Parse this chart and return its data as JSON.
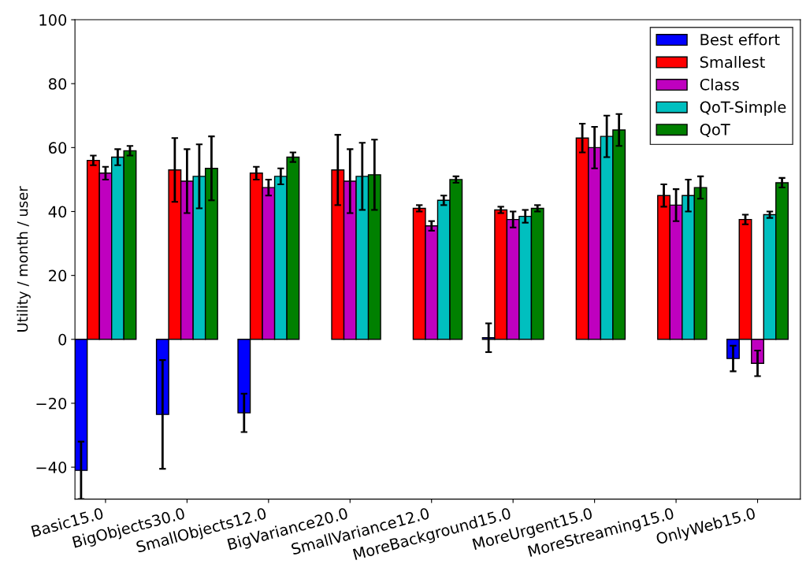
{
  "chart_data": {
    "type": "bar",
    "ylabel": "Utility / month / user",
    "categories": [
      "Basic15.0",
      "BigObjects30.0",
      "SmallObjects12.0",
      "BigVariance20.0",
      "SmallVariance12.0",
      "MoreBackground15.0",
      "MoreUrgent15.0",
      "MoreStreaming15.0",
      "OnlyWeb15.0"
    ],
    "series": [
      {
        "name": "Best effort",
        "color": "#0000ff",
        "values": [
          -41,
          -23.5,
          -23,
          null,
          null,
          0.5,
          null,
          null,
          -6
        ],
        "errors": [
          9,
          17,
          6,
          null,
          null,
          4.5,
          null,
          null,
          4
        ]
      },
      {
        "name": "Smallest",
        "color": "#ff0000",
        "values": [
          56,
          53,
          52,
          53,
          41,
          40.5,
          63,
          45,
          37.5
        ],
        "errors": [
          1.5,
          10,
          2,
          11,
          1,
          1,
          4.5,
          3.5,
          1.5
        ]
      },
      {
        "name": "Class",
        "color": "#bf00bf",
        "values": [
          52,
          49.5,
          47.5,
          49.5,
          35.5,
          37.5,
          60,
          42,
          -7.5
        ],
        "errors": [
          2,
          10,
          2.5,
          10,
          1.5,
          2.5,
          6.5,
          5,
          4
        ]
      },
      {
        "name": "QoT-Simple",
        "color": "#00bfbf",
        "values": [
          57,
          51,
          51,
          51,
          43.5,
          38.5,
          63.5,
          45,
          39
        ],
        "errors": [
          2.5,
          10,
          2.5,
          10.5,
          1.5,
          2,
          6.5,
          5,
          1
        ]
      },
      {
        "name": "QoT",
        "color": "#008000",
        "values": [
          59,
          53.5,
          57,
          51.5,
          50,
          41,
          65.5,
          47.5,
          49
        ],
        "errors": [
          1.5,
          10,
          1.5,
          11,
          1,
          1,
          5,
          3.5,
          1.5
        ]
      }
    ],
    "ylim": [
      -50,
      100
    ],
    "yticks": [
      {
        "value": -40,
        "label": "−40"
      },
      {
        "value": -20,
        "label": "−20"
      },
      0,
      20,
      40,
      60,
      80,
      100
    ],
    "legend": "top right",
    "grid": false
  }
}
